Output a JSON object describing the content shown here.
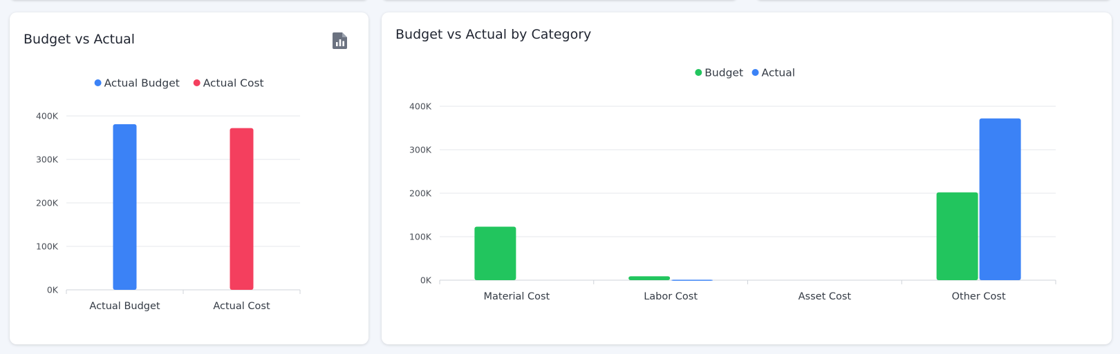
{
  "left_card": {
    "title": "Budget vs Actual",
    "icon": "report-chart-icon"
  },
  "right_card": {
    "title": "Budget vs Actual by Category"
  },
  "chart_data": [
    {
      "type": "bar",
      "title": "Budget vs Actual",
      "categories": [
        "Actual Budget",
        "Actual Cost"
      ],
      "series": [
        {
          "name": "Actual Budget",
          "color": "#3b82f6",
          "values": [
            381000,
            null
          ]
        },
        {
          "name": "Actual Cost",
          "color": "#f43f5e",
          "values": [
            null,
            372000
          ]
        }
      ],
      "ylim": [
        0,
        400000
      ],
      "yticks": [
        "0K",
        "100K",
        "200K",
        "300K",
        "400K"
      ],
      "grid": true,
      "legend": "top-center"
    },
    {
      "type": "bar",
      "title": "Budget vs Actual by Category",
      "categories": [
        "Material Cost",
        "Labor Cost",
        "Asset Cost",
        "Other Cost"
      ],
      "series": [
        {
          "name": "Budget",
          "color": "#22c55e",
          "values": [
            123000,
            9000,
            0,
            202000
          ]
        },
        {
          "name": "Actual",
          "color": "#3b82f6",
          "values": [
            0,
            1000,
            0,
            372000
          ]
        }
      ],
      "ylim": [
        0,
        400000
      ],
      "yticks": [
        "0K",
        "100K",
        "200K",
        "300K",
        "400K"
      ],
      "grid": true,
      "legend": "top-center"
    }
  ]
}
